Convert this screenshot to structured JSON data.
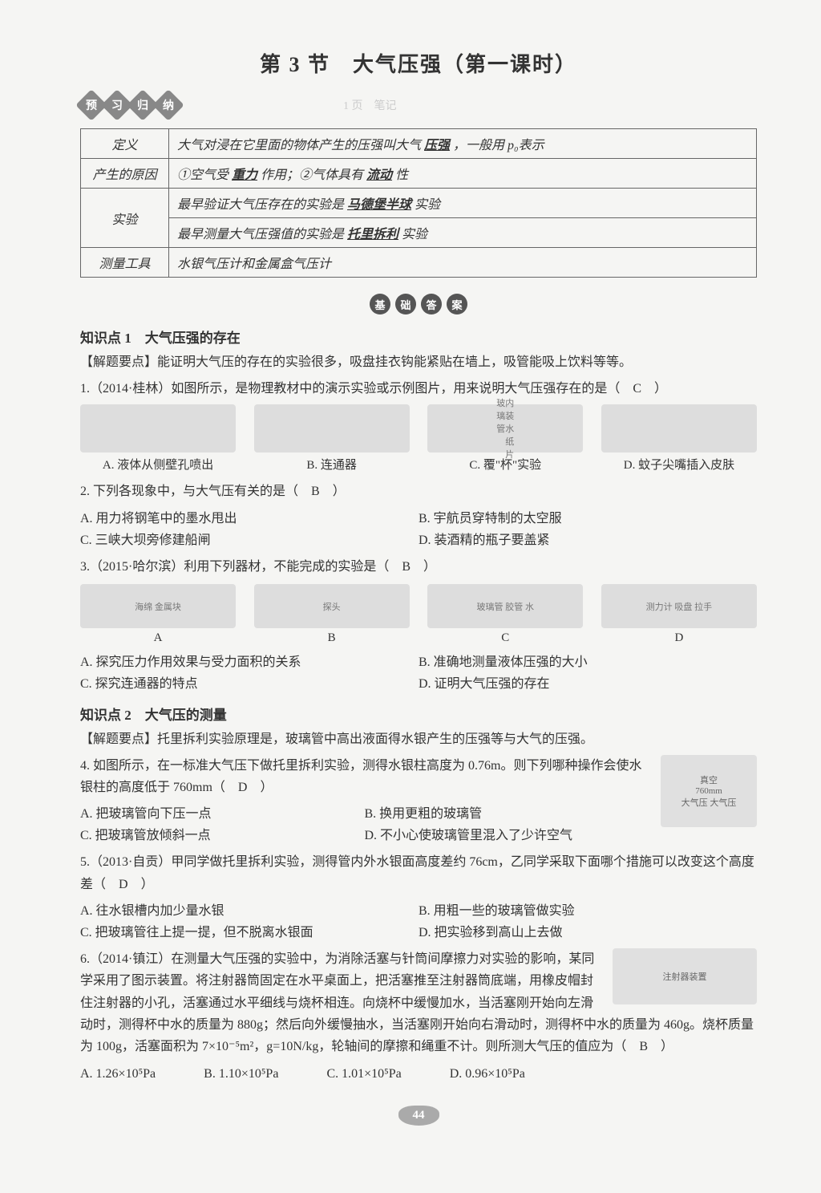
{
  "title": "第 3 节　大气压强（第一课时）",
  "badge1": {
    "c1": "预",
    "c2": "习",
    "c3": "归",
    "c4": "纳"
  },
  "faint": "1 页　笔记",
  "table": {
    "r1_label": "定义",
    "r1_text_a": "大气对浸在它里面的物体产生的压强叫大气",
    "r1_blank1": "压强",
    "r1_text_b": "，一般用 p₀表示",
    "r2_label": "产生的原因",
    "r2_text_a": "①空气受",
    "r2_blank1": "重力",
    "r2_text_b": "作用；②气体具有",
    "r2_blank2": "流动",
    "r2_text_c": "性",
    "r3_label": "实验",
    "r3a_text_a": "最早验证大气压存在的实验是",
    "r3a_blank": "马德堡半球",
    "r3a_text_b": "实验",
    "r3b_text_a": "最早测量大气压强值的实验是",
    "r3b_blank": "托里拆利",
    "r3b_text_b": "实验",
    "r4_label": "测量工具",
    "r4_text": "水银气压计和金属盒气压计"
  },
  "badge2": {
    "c1": "基",
    "c2": "础",
    "c3": "答",
    "c4": "案"
  },
  "kp1_title": "知识点 1　大气压强的存在",
  "kp1_hint": "【解题要点】能证明大气压的存在的实验很多，吸盘挂衣钩能紧贴在墙上，吸管能吸上饮料等等。",
  "q1": {
    "stem": "1.（2014·桂林）如图所示，是物理教材中的演示实验或示例图片，用来说明大气压强存在的是（",
    "ans": "C",
    "close": "）",
    "optA": "A. 液体从侧壁孔喷出",
    "optB": "B. 连通器",
    "optC_label": "玻内\n璃装\n管水\n　纸\n　片",
    "optC": "C. 覆\"杯\"实验",
    "optD": "D. 蚊子尖嘴插入皮肤"
  },
  "q2": {
    "stem": "2. 下列各现象中，与大气压有关的是（",
    "ans": "B",
    "close": "）",
    "optA": "A. 用力将钢笔中的墨水甩出",
    "optB": "B. 宇航员穿特制的太空服",
    "optC": "C. 三峡大坝旁修建船闸",
    "optD": "D. 装酒精的瓶子要盖紧"
  },
  "q3": {
    "stem": "3.（2015·哈尔滨）利用下列器材，不能完成的实验是（",
    "ans": "B",
    "close": "）",
    "imgA": "海绵 金属块",
    "imgB": "探头",
    "imgC": "玻璃管 胶管 水",
    "imgD": "测力计 吸盘 拉手",
    "labA": "A",
    "labB": "B",
    "labC": "C",
    "labD": "D",
    "optA": "A. 探究压力作用效果与受力面积的关系",
    "optB": "B. 准确地测量液体压强的大小",
    "optC": "C. 探究连通器的特点",
    "optD": "D. 证明大气压强的存在"
  },
  "kp2_title": "知识点 2　大气压的测量",
  "kp2_hint": "【解题要点】托里拆利实验原理是，玻璃管中高出液面得水银产生的压强等与大气的压强。",
  "q4": {
    "diagram": "真空\n760mm\n大气压 大气压",
    "stem": "4. 如图所示，在一标准大气压下做托里拆利实验，测得水银柱高度为 0.76m。则下列哪种操作会使水银柱的高度低于 760mm（",
    "ans": "D",
    "close": "）",
    "optA": "A. 把玻璃管向下压一点",
    "optB": "B. 换用更粗的玻璃管",
    "optC": "C. 把玻璃管放倾斜一点",
    "optD": "D. 不小心使玻璃管里混入了少许空气"
  },
  "q5": {
    "stem": "5.（2013·自贡）甲同学做托里拆利实验，测得管内外水银面高度差约 76cm，乙同学采取下面哪个措施可以改变这个高度差（",
    "ans": "D",
    "close": "）",
    "optA": "A. 往水银槽内加少量水银",
    "optB": "B. 用粗一些的玻璃管做实验",
    "optC": "C. 把玻璃管往上提一提，但不脱离水银面",
    "optD": "D. 把实验移到高山上去做"
  },
  "q6": {
    "diagram": "注射器装置",
    "stem_a": "6.（2014·镇江）在测量大气压强的实验中，为消除活塞与针筒间摩擦力对实验的影响，某同学采用了图示装置。将注射器筒固定在水平桌面上，把活塞推至注射器筒底端，用橡皮帽封住注射器的小孔，活塞通过水平细线与烧杯相连。向烧杯中缓慢加水，当活塞刚开始向左滑动时，测得杯中水的质量为 880g；然后向外缓慢抽水，当活塞刚开始向右滑动时，测得杯中水的质量为 460g。烧杯质量为 100g，活塞面积为 7×10⁻⁵m²，g=10N/kg，轮轴间的摩擦和绳重不计。则所测大气压的值应为（",
    "ans": "B",
    "close": "）",
    "optA": "A. 1.26×10⁵Pa",
    "optB": "B. 1.10×10⁵Pa",
    "optC": "C. 1.01×10⁵Pa",
    "optD": "D. 0.96×10⁵Pa"
  },
  "page_num": "44"
}
